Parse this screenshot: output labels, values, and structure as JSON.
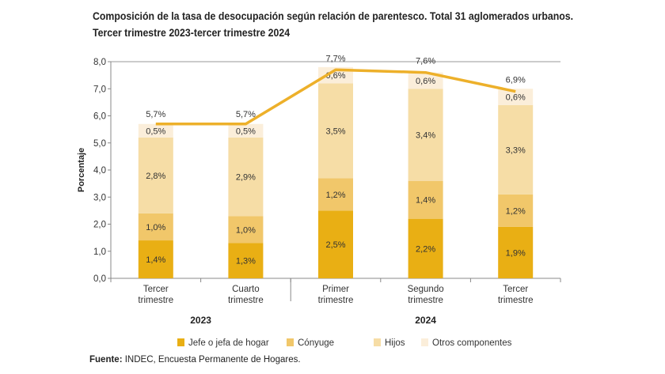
{
  "title_line1": "Composición de la tasa de desocupación según relación de parentesco. Total 31 aglomerados urbanos.",
  "title_line2": "Tercer trimestre 2023-tercer trimestre 2024",
  "source_label": "Fuente:",
  "source_text": "INDEC, Encuesta Permanente de Hogares.",
  "chart_data": {
    "type": "bar",
    "stacked": true,
    "ylabel": "Porcentaje",
    "ylim": [
      0,
      8
    ],
    "yticks": [
      "0,0",
      "1,0",
      "2,0",
      "3,0",
      "4,0",
      "5,0",
      "6,0",
      "7,0",
      "8,0"
    ],
    "categories": [
      [
        "Tercer",
        "trimestre"
      ],
      [
        "Cuarto",
        "trimestre"
      ],
      [
        "Primer",
        "trimestre"
      ],
      [
        "Segundo",
        "trimestre"
      ],
      [
        "Tercer",
        "trimestre"
      ]
    ],
    "groups": [
      {
        "label": "2023",
        "span": [
          0,
          1
        ]
      },
      {
        "label": "2024",
        "span": [
          2,
          4
        ]
      }
    ],
    "series": [
      {
        "name": "Jefe o jefa de hogar",
        "color": "#E9AF14",
        "values": [
          1.4,
          1.3,
          2.5,
          2.2,
          1.9
        ],
        "labels": [
          "1,4%",
          "1,3%",
          "2,5%",
          "2,2%",
          "1,9%"
        ]
      },
      {
        "name": "Cónyuge",
        "color": "#F1C76A",
        "values": [
          1.0,
          1.0,
          1.2,
          1.4,
          1.2
        ],
        "labels": [
          "1,0%",
          "1,0%",
          "1,2%",
          "1,4%",
          "1,2%"
        ]
      },
      {
        "name": "Hijos",
        "color": "#F6DDA6",
        "values": [
          2.8,
          2.9,
          3.5,
          3.4,
          3.3
        ],
        "labels": [
          "2,8%",
          "2,9%",
          "3,5%",
          "3,4%",
          "3,3%"
        ]
      },
      {
        "name": "Otros componentes",
        "color": "#FBEEDA",
        "values": [
          0.5,
          0.5,
          0.6,
          0.6,
          0.6
        ],
        "labels": [
          "0,5%",
          "0,5%",
          "0,6%",
          "0,6%",
          "0,6%"
        ]
      }
    ],
    "total": {
      "color": "#EDB02A",
      "values": [
        5.7,
        5.7,
        7.7,
        7.6,
        6.9
      ],
      "labels": [
        "5,7%",
        "5,7%",
        "7,7%",
        "7,6%",
        "6,9%"
      ]
    },
    "legend_position": "bottom",
    "grid": false
  }
}
